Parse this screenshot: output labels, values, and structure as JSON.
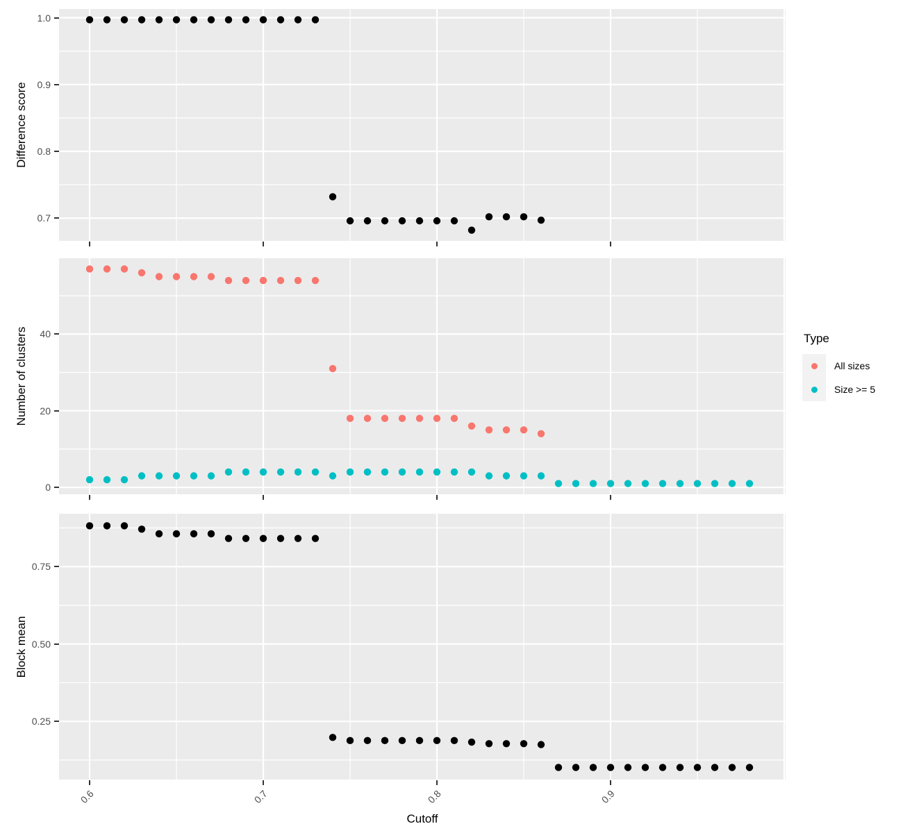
{
  "figure": {
    "background": "#FFFFFF",
    "panel_background": "#EBEBEB",
    "grid_color": "#FFFFFF",
    "tick_mark_color": "#333333",
    "axis_text_color": "#4D4D4D",
    "axis_title_color": "#000000"
  },
  "x_axis": {
    "title": "Cutoff",
    "ticks": [
      0.6,
      0.7,
      0.8,
      0.9
    ],
    "tick_labels": [
      "0.6",
      "0.7",
      "0.8",
      "0.9"
    ],
    "major": [
      0.6,
      0.7,
      0.8,
      0.9,
      1.0
    ],
    "minor": [
      0.65,
      0.75,
      0.85,
      0.95
    ],
    "lim": [
      0.5824,
      1.0008
    ]
  },
  "legend": {
    "title": "Type",
    "key_background": "#F2F2F2",
    "items": [
      {
        "label": "All sizes",
        "color": "#F8766D"
      },
      {
        "label": "Size >= 5",
        "color": "#00BFC4"
      }
    ]
  },
  "chart_data": {
    "type": "scatter",
    "title": "",
    "xlabel": "Cutoff",
    "x_ticks": [
      0.6,
      0.7,
      0.8,
      0.9
    ],
    "facets": [
      {
        "ylabel": "Difference score",
        "ylim": [
          0.666,
          1.013
        ],
        "yticks": [
          0.7,
          0.8,
          0.9,
          1.0
        ],
        "ytick_labels": [
          "0.7",
          "0.8",
          "0.9",
          "1.0"
        ],
        "yminor": [
          0.75,
          0.85,
          0.95
        ],
        "series": [
          {
            "name": "Difference score",
            "color": "#000000",
            "x": [
              0.6,
              0.61,
              0.62,
              0.63,
              0.64,
              0.65,
              0.66,
              0.67,
              0.68,
              0.69,
              0.7,
              0.71,
              0.72,
              0.73,
              0.74,
              0.75,
              0.76,
              0.77,
              0.78,
              0.79,
              0.8,
              0.81,
              0.82,
              0.83,
              0.84,
              0.85,
              0.86
            ],
            "y": [
              0.997,
              0.997,
              0.997,
              0.997,
              0.997,
              0.997,
              0.997,
              0.997,
              0.997,
              0.997,
              0.997,
              0.997,
              0.997,
              0.997,
              0.732,
              0.696,
              0.696,
              0.696,
              0.696,
              0.696,
              0.696,
              0.696,
              0.682,
              0.702,
              0.702,
              0.702,
              0.697
            ]
          }
        ]
      },
      {
        "ylabel": "Number of clusters",
        "ylim": [
          -1.8,
          59.8
        ],
        "yticks": [
          0,
          20,
          40
        ],
        "ytick_labels": [
          "0",
          "20",
          "40"
        ],
        "yminor": [
          10,
          30,
          50
        ],
        "series": [
          {
            "name": "All sizes",
            "color": "#F8766D",
            "x": [
              0.6,
              0.61,
              0.62,
              0.63,
              0.64,
              0.65,
              0.66,
              0.67,
              0.68,
              0.69,
              0.7,
              0.71,
              0.72,
              0.73,
              0.74,
              0.75,
              0.76,
              0.77,
              0.78,
              0.79,
              0.8,
              0.81,
              0.82,
              0.83,
              0.84,
              0.85,
              0.86
            ],
            "y": [
              57,
              57,
              57,
              56,
              55,
              55,
              55,
              55,
              54,
              54,
              54,
              54,
              54,
              54,
              31,
              18,
              18,
              18,
              18,
              18,
              18,
              18,
              16,
              15,
              15,
              15,
              14
            ]
          },
          {
            "name": "Size >= 5",
            "color": "#00BFC4",
            "x": [
              0.6,
              0.61,
              0.62,
              0.63,
              0.64,
              0.65,
              0.66,
              0.67,
              0.68,
              0.69,
              0.7,
              0.71,
              0.72,
              0.73,
              0.74,
              0.75,
              0.76,
              0.77,
              0.78,
              0.79,
              0.8,
              0.81,
              0.82,
              0.83,
              0.84,
              0.85,
              0.86,
              0.87,
              0.88,
              0.89,
              0.9,
              0.91,
              0.92,
              0.93,
              0.94,
              0.95,
              0.96,
              0.97,
              0.98
            ],
            "y": [
              2,
              2,
              2,
              3,
              3,
              3,
              3,
              3,
              4,
              4,
              4,
              4,
              4,
              4,
              3,
              4,
              4,
              4,
              4,
              4,
              4,
              4,
              4,
              3,
              3,
              3,
              3,
              1,
              1,
              1,
              1,
              1,
              1,
              1,
              1,
              1,
              1,
              1,
              1
            ]
          }
        ]
      },
      {
        "ylabel": "Block mean",
        "ylim": [
          0.062,
          0.921
        ],
        "yticks": [
          0.25,
          0.5,
          0.75
        ],
        "ytick_labels": [
          "0.25",
          "0.50",
          "0.75"
        ],
        "yminor": [
          0.125,
          0.375,
          0.625,
          0.875
        ],
        "series": [
          {
            "name": "Block mean",
            "color": "#000000",
            "x": [
              0.6,
              0.61,
              0.62,
              0.63,
              0.64,
              0.65,
              0.66,
              0.67,
              0.68,
              0.69,
              0.7,
              0.71,
              0.72,
              0.73,
              0.74,
              0.75,
              0.76,
              0.77,
              0.78,
              0.79,
              0.8,
              0.81,
              0.82,
              0.83,
              0.84,
              0.85,
              0.86,
              0.87,
              0.88,
              0.89,
              0.9,
              0.91,
              0.92,
              0.93,
              0.94,
              0.95,
              0.96,
              0.97,
              0.98
            ],
            "y": [
              0.882,
              0.882,
              0.882,
              0.871,
              0.856,
              0.856,
              0.856,
              0.856,
              0.841,
              0.841,
              0.841,
              0.841,
              0.841,
              0.841,
              0.198,
              0.188,
              0.188,
              0.188,
              0.188,
              0.188,
              0.188,
              0.188,
              0.183,
              0.178,
              0.178,
              0.178,
              0.175,
              0.101,
              0.101,
              0.101,
              0.101,
              0.101,
              0.101,
              0.101,
              0.101,
              0.101,
              0.101,
              0.101,
              0.101
            ]
          }
        ]
      }
    ]
  }
}
